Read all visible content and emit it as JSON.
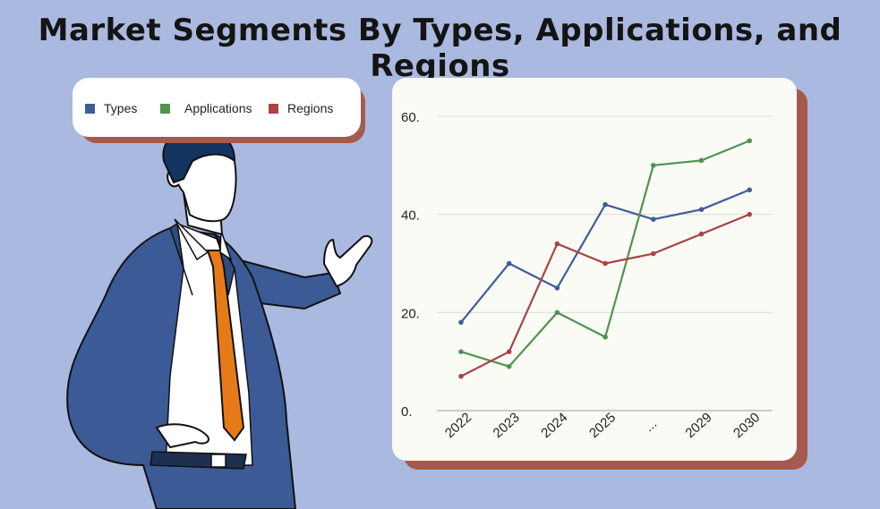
{
  "title": "Market Segments By Types, Applications, and Regions",
  "legend": [
    {
      "label": "Types",
      "color": "#3f5d98"
    },
    {
      "label": "Applications",
      "color": "#4f9450"
    },
    {
      "label": "Regions",
      "color": "#a84444"
    }
  ],
  "chart_data": {
    "type": "line",
    "categories": [
      "2022",
      "2023",
      "2024",
      "2025",
      "...",
      "2029",
      "2030"
    ],
    "yticks": [
      "0.",
      "20.",
      "40.",
      "60."
    ],
    "ylim": [
      0,
      60
    ],
    "grid": true,
    "legend_position": "outside-top-left",
    "series": [
      {
        "name": "Types",
        "color": "#3f5d98",
        "values": [
          18,
          30,
          25,
          42,
          39,
          41,
          45
        ]
      },
      {
        "name": "Applications",
        "color": "#4f9450",
        "values": [
          12,
          9,
          20,
          15,
          50,
          51,
          55
        ]
      },
      {
        "name": "Regions",
        "color": "#a84444",
        "values": [
          7,
          12,
          34,
          30,
          32,
          36,
          40
        ]
      }
    ]
  }
}
